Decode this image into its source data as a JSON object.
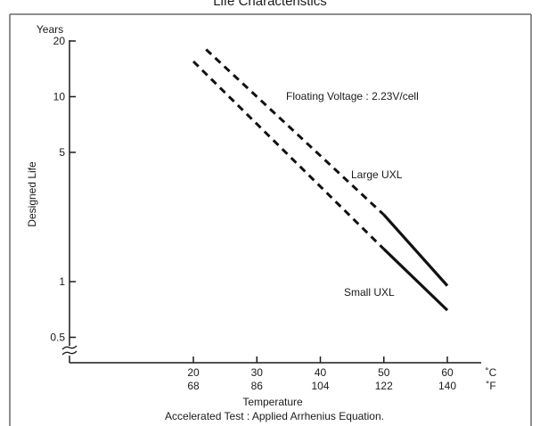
{
  "header_partial": "Life Characteristics",
  "chart_data": {
    "type": "line",
    "yscale": "log",
    "ylabel": "Designed Life",
    "y_unit": "Years",
    "ylim": [
      0.5,
      20
    ],
    "yticks": [
      20,
      10,
      5,
      1,
      0.5
    ],
    "ytick_labels": [
      "20",
      "10",
      "5",
      "1",
      "0.5"
    ],
    "xlabel": "Temperature",
    "xlim": [
      20,
      60
    ],
    "xticks": [
      20,
      30,
      40,
      50,
      60
    ],
    "xtick_labels_c": [
      "20",
      "30",
      "40",
      "50",
      "60"
    ],
    "xtick_labels_f": [
      "68",
      "86",
      "104",
      "122",
      "140"
    ],
    "x_unit_c": "˚C",
    "x_unit_f": "˚F",
    "annotation": "Floating Voltage : 2.23V/cell",
    "footnote": "Accelerated Test : Applied Arrhenius Equation.",
    "line_style_note": "dashed = extrapolated, solid = measured",
    "series": [
      {
        "name": "Large UXL",
        "dashed": {
          "x": [
            22,
            50
          ],
          "y": [
            18,
            2.3
          ]
        },
        "solid": {
          "x": [
            50,
            60
          ],
          "y": [
            2.3,
            0.95
          ]
        }
      },
      {
        "name": "Small UXL",
        "dashed": {
          "x": [
            20,
            50
          ],
          "y": [
            15.5,
            1.5
          ]
        },
        "solid": {
          "x": [
            50,
            60
          ],
          "y": [
            1.5,
            0.7
          ]
        }
      }
    ]
  }
}
